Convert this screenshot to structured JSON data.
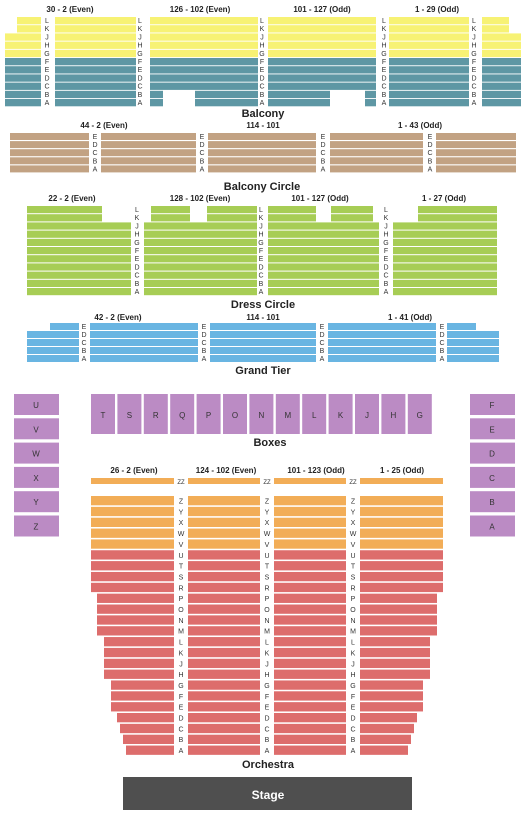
{
  "colors": {
    "balcony_upper": "#f7f274",
    "balcony_lower": "#5e97a4",
    "balcony_circle": "#c2a283",
    "dress_circle": "#a7cd55",
    "grand_tier": "#69b5e2",
    "boxes": "#bb8bc4",
    "orchestra_zz": "#f2ad57",
    "orchestra_upper": "#f2ad57",
    "orchestra_lower": "#dd6d6c",
    "stage": "#4f4f4f",
    "row_letter": "#333333"
  },
  "sections": {
    "balcony": {
      "label": "Balcony",
      "headers": [
        "30 - 2 (Even)",
        "126 - 102 (Even)",
        "101 - 127 (Odd)",
        "1 - 29 (Odd)"
      ],
      "rows": [
        "L",
        "K",
        "J",
        "H",
        "G",
        "F",
        "E",
        "D",
        "C",
        "B",
        "A"
      ]
    },
    "balcony_circle": {
      "label": "Balcony Circle",
      "headers": [
        "44 - 2 (Even)",
        "114 - 101",
        "1 - 43 (Odd)"
      ],
      "rows": [
        "E",
        "D",
        "C",
        "B",
        "A"
      ]
    },
    "dress_circle": {
      "label": "Dress Circle",
      "headers": [
        "22 - 2 (Even)",
        "128 - 102 (Even)",
        "101 - 127 (Odd)",
        "1 - 27 (Odd)"
      ],
      "rows": [
        "L",
        "K",
        "J",
        "H",
        "G",
        "F",
        "E",
        "D",
        "C",
        "B",
        "A"
      ]
    },
    "grand_tier": {
      "label": "Grand Tier",
      "headers": [
        "42 - 2 (Even)",
        "114 - 101",
        "1 - 41 (Odd)"
      ],
      "rows": [
        "E",
        "D",
        "C",
        "B",
        "A"
      ]
    },
    "boxes": {
      "label": "Boxes",
      "row_boxes": [
        "T",
        "S",
        "R",
        "Q",
        "P",
        "O",
        "N",
        "M",
        "L",
        "K",
        "J",
        "H",
        "G"
      ],
      "left_boxes": [
        "U",
        "V",
        "W",
        "X",
        "Y",
        "Z"
      ],
      "right_boxes": [
        "F",
        "E",
        "D",
        "C",
        "B",
        "A"
      ]
    },
    "orchestra": {
      "label": "Orchestra",
      "headers": [
        "26 - 2 (Even)",
        "124 - 102 (Even)",
        "101 - 123 (Odd)",
        "1 - 25 (Odd)"
      ],
      "zz_label": "ZZ",
      "rows": [
        "Z",
        "Y",
        "X",
        "W",
        "V",
        "U",
        "T",
        "S",
        "R",
        "P",
        "O",
        "N",
        "M",
        "L",
        "K",
        "J",
        "H",
        "G",
        "F",
        "E",
        "D",
        "C",
        "B",
        "A"
      ]
    },
    "stage": {
      "label": "Stage"
    }
  }
}
